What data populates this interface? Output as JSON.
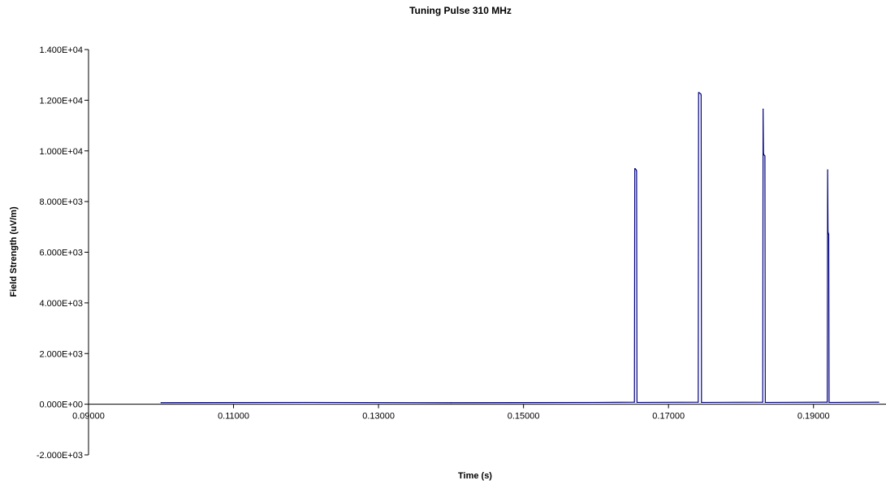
{
  "chart_data": {
    "type": "line",
    "title": "Tuning Pulse 310 MHz",
    "xlabel": "Time (s)",
    "ylabel": "Field Strength (uV/m)",
    "xlim": [
      0.09,
      0.2
    ],
    "ylim": [
      -2000,
      14000
    ],
    "x_tick_values": [
      0.09,
      0.11,
      0.13,
      0.15,
      0.17,
      0.19
    ],
    "x_tick_labels": [
      "0.09000",
      "0.11000",
      "0.13000",
      "0.15000",
      "0.17000",
      "0.19000"
    ],
    "y_tick_values": [
      -2000,
      0,
      2000,
      4000,
      6000,
      8000,
      10000,
      12000,
      14000
    ],
    "y_tick_labels": [
      "-2.000E+03",
      "0.000E+00",
      "2.000E+03",
      "4.000E+03",
      "6.000E+03",
      "8.000E+03",
      "1.000E+04",
      "1.200E+04",
      "1.400E+04"
    ],
    "grid": false,
    "legend": "none",
    "series": [
      {
        "color": "#00007f",
        "x": [
          0.1,
          0.12,
          0.14,
          0.16,
          0.1653,
          0.16535,
          0.1654,
          0.16555,
          0.1656,
          0.16565,
          0.1741,
          0.17415,
          0.1742,
          0.17445,
          0.1745,
          0.17455,
          0.183,
          0.18305,
          0.1831,
          0.18315,
          0.1833,
          0.18335,
          0.1919,
          0.19195,
          0.192,
          0.19205,
          0.1921,
          0.19215,
          0.199
        ],
        "y": [
          60,
          70,
          60,
          70,
          80,
          9300,
          9300,
          9250,
          9200,
          70,
          80,
          12300,
          12300,
          12250,
          12200,
          70,
          80,
          11650,
          9900,
          9850,
          9800,
          70,
          80,
          9250,
          6800,
          6750,
          6700,
          70,
          80
        ]
      }
    ]
  }
}
